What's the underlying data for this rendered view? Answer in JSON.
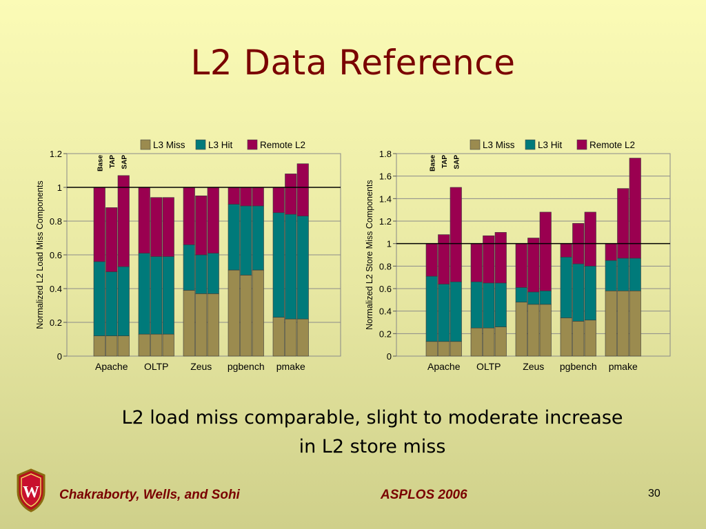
{
  "slide": {
    "title": "L2 Data Reference",
    "caption_line1": "L2 load miss comparable, slight to moderate increase",
    "caption_line2": "in L2 store miss",
    "authors": "Chakraborty, Wells, and Sohi",
    "conference": "ASPLOS 2006",
    "page_number": "30",
    "logo_icon": "uw-crest-icon"
  },
  "colors": {
    "l3_miss": "#9b8b4f",
    "l3_hit": "#007a7a",
    "remote_l2": "#9a0050",
    "title": "#7a0000"
  },
  "chart_data": [
    {
      "type": "bar",
      "stacked": true,
      "ylabel": "Normalized L2 Load Miss Components",
      "ylim": [
        0,
        1.2
      ],
      "yticks": [
        0,
        0.2,
        0.4,
        0.6,
        0.8,
        1,
        1.2
      ],
      "ytick_labels": [
        "0",
        "0.2",
        "0.4",
        "0.6",
        "0.8",
        "1",
        "1.2"
      ],
      "reference_line": 1,
      "grid": true,
      "legend_position": "top",
      "bar_labels": [
        "Base",
        "TAP",
        "SAP"
      ],
      "groups": [
        "Apache",
        "OLTP",
        "Zeus",
        "pgbench",
        "pmake"
      ],
      "series": [
        {
          "name": "L3 Miss",
          "values": [
            [
              0.12,
              0.12,
              0.12
            ],
            [
              0.13,
              0.13,
              0.13
            ],
            [
              0.39,
              0.37,
              0.37
            ],
            [
              0.51,
              0.48,
              0.51
            ],
            [
              0.23,
              0.22,
              0.22
            ]
          ]
        },
        {
          "name": "L3 Hit",
          "values": [
            [
              0.44,
              0.38,
              0.41
            ],
            [
              0.48,
              0.46,
              0.46
            ],
            [
              0.27,
              0.23,
              0.24
            ],
            [
              0.39,
              0.41,
              0.38
            ],
            [
              0.62,
              0.62,
              0.61
            ]
          ]
        },
        {
          "name": "Remote L2",
          "values": [
            [
              0.44,
              0.38,
              0.54
            ],
            [
              0.39,
              0.35,
              0.35
            ],
            [
              0.34,
              0.35,
              0.39
            ],
            [
              0.1,
              0.11,
              0.11
            ],
            [
              0.15,
              0.24,
              0.31
            ]
          ]
        }
      ]
    },
    {
      "type": "bar",
      "stacked": true,
      "ylabel": "Normalized L2 Store Miss Components",
      "ylim": [
        0,
        1.8
      ],
      "yticks": [
        0,
        0.2,
        0.4,
        0.6,
        0.8,
        1,
        1.2,
        1.4,
        1.6,
        1.8
      ],
      "ytick_labels": [
        "0",
        "0.2",
        "0.4",
        "0.6",
        "0.8",
        "1",
        "1.2",
        "1.4",
        "1.6",
        "1.8"
      ],
      "reference_line": 1,
      "grid": true,
      "legend_position": "top",
      "bar_labels": [
        "Base",
        "TAP",
        "SAP"
      ],
      "groups": [
        "Apache",
        "OLTP",
        "Zeus",
        "pgbench",
        "pmake"
      ],
      "series": [
        {
          "name": "L3 Miss",
          "values": [
            [
              0.13,
              0.13,
              0.13
            ],
            [
              0.25,
              0.25,
              0.26
            ],
            [
              0.48,
              0.46,
              0.46
            ],
            [
              0.34,
              0.31,
              0.32
            ],
            [
              0.58,
              0.58,
              0.58
            ]
          ]
        },
        {
          "name": "L3 Hit",
          "values": [
            [
              0.58,
              0.51,
              0.53
            ],
            [
              0.41,
              0.4,
              0.39
            ],
            [
              0.13,
              0.11,
              0.12
            ],
            [
              0.54,
              0.51,
              0.48
            ],
            [
              0.27,
              0.29,
              0.29
            ]
          ]
        },
        {
          "name": "Remote L2",
          "values": [
            [
              0.29,
              0.44,
              0.84
            ],
            [
              0.34,
              0.42,
              0.45
            ],
            [
              0.39,
              0.48,
              0.7
            ],
            [
              0.12,
              0.36,
              0.48
            ],
            [
              0.15,
              0.62,
              0.89
            ]
          ]
        }
      ]
    }
  ]
}
